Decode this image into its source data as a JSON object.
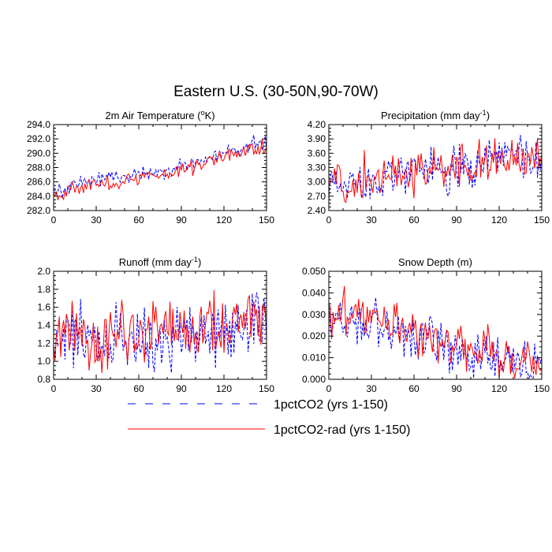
{
  "figure": {
    "title": "Eastern U.S. (30-50N,90-70W)"
  },
  "colors": {
    "co2": "#0000ff",
    "rad": "#ff0000",
    "axis": "#000000"
  },
  "legend": {
    "position": "bottom-center",
    "items": [
      {
        "label": "1pctCO2 (yrs 1-150)",
        "color": "#0000ff",
        "style": "dashed"
      },
      {
        "label": "1pctCO2-rad (yrs 1-150)",
        "color": "#ff0000",
        "style": "solid"
      }
    ]
  },
  "chart_data": [
    {
      "type": "line",
      "title": "2m Air Temperature (",
      "title_sup": "o",
      "title_post": "K)",
      "xlim": [
        0,
        150
      ],
      "ylim": [
        282.0,
        294.0
      ],
      "xticks": [
        0,
        30,
        60,
        90,
        120,
        150
      ],
      "xtick_labels": [
        "0",
        "30",
        "60",
        "90",
        "120",
        "150"
      ],
      "yticks": [
        282.0,
        284.0,
        286.0,
        288.0,
        290.0,
        292.0,
        294.0
      ],
      "ytick_labels": [
        "282.0",
        "284.0",
        "286.0",
        "288.0",
        "290.0",
        "292.0",
        "294.0"
      ],
      "series": [
        {
          "name": "1pctCO2 (yrs 1-150)",
          "color": "#0000ff",
          "dash": true,
          "x_start": 0,
          "x_step": 10,
          "values": [
            284.7,
            285.0,
            286.1,
            286.3,
            286.7,
            286.9,
            286.9,
            287.6,
            287.7,
            288.0,
            288.6,
            289.3,
            290.0,
            290.5,
            291.3,
            291.4
          ]
        },
        {
          "name": "1pctCO2-rad (yrs 1-150)",
          "color": "#ff0000",
          "dash": false,
          "x_start": 0,
          "x_step": 10,
          "values": [
            284.3,
            284.8,
            285.4,
            285.6,
            285.8,
            286.2,
            286.4,
            286.9,
            287.2,
            287.8,
            288.2,
            289.0,
            289.7,
            290.2,
            290.5,
            290.9
          ]
        }
      ]
    },
    {
      "type": "line",
      "title": "Precipitation (mm day",
      "title_sup": "-1",
      "title_post": ")",
      "xlim": [
        0,
        150
      ],
      "ylim": [
        2.4,
        4.2
      ],
      "xticks": [
        0,
        30,
        60,
        90,
        120,
        150
      ],
      "xtick_labels": [
        "0",
        "30",
        "60",
        "90",
        "120",
        "150"
      ],
      "yticks": [
        2.4,
        2.7,
        3.0,
        3.3,
        3.6,
        3.9,
        4.2
      ],
      "ytick_labels": [
        "2.40",
        "2.70",
        "3.00",
        "3.30",
        "3.60",
        "3.90",
        "4.20"
      ],
      "series": [
        {
          "name": "1pctCO2 (yrs 1-150)",
          "color": "#0000ff",
          "dash": true,
          "x_start": 0,
          "x_step": 10,
          "values": [
            3.0,
            3.1,
            2.95,
            3.0,
            3.2,
            3.15,
            3.2,
            3.3,
            3.2,
            3.35,
            3.2,
            3.4,
            3.5,
            3.6,
            3.45,
            3.4
          ]
        },
        {
          "name": "1pctCO2-rad (yrs 1-150)",
          "color": "#ff0000",
          "dash": false,
          "x_start": 0,
          "x_step": 10,
          "values": [
            3.0,
            3.0,
            3.05,
            3.1,
            3.15,
            3.15,
            3.25,
            3.25,
            3.3,
            3.3,
            3.3,
            3.4,
            3.4,
            3.45,
            3.4,
            3.4
          ]
        }
      ]
    },
    {
      "type": "line",
      "title": "Runoff (mm day",
      "title_sup": "-1",
      "title_post": ")",
      "xlim": [
        0,
        150
      ],
      "ylim": [
        0.8,
        2.0
      ],
      "xticks": [
        0,
        30,
        60,
        90,
        120,
        150
      ],
      "xtick_labels": [
        "0",
        "30",
        "60",
        "90",
        "120",
        "150"
      ],
      "yticks": [
        0.8,
        1.0,
        1.2,
        1.4,
        1.6,
        1.8,
        2.0
      ],
      "ytick_labels": [
        "0.8",
        "1.0",
        "1.2",
        "1.4",
        "1.6",
        "1.8",
        "2.0"
      ],
      "series": [
        {
          "name": "1pctCO2 (yrs 1-150)",
          "color": "#0000ff",
          "dash": true,
          "x_start": 0,
          "x_step": 10,
          "values": [
            1.2,
            1.3,
            1.3,
            1.2,
            1.15,
            1.2,
            1.3,
            1.25,
            1.25,
            1.3,
            1.35,
            1.3,
            1.35,
            1.4,
            1.45,
            1.45
          ]
        },
        {
          "name": "1pctCO2-rad (yrs 1-150)",
          "color": "#ff0000",
          "dash": false,
          "x_start": 0,
          "x_step": 10,
          "values": [
            1.3,
            1.25,
            1.3,
            1.25,
            1.25,
            1.3,
            1.3,
            1.35,
            1.35,
            1.35,
            1.4,
            1.4,
            1.4,
            1.45,
            1.5,
            1.55
          ]
        }
      ]
    },
    {
      "type": "line",
      "title": "Snow Depth (m)",
      "title_sup": "",
      "title_post": "",
      "xlim": [
        0,
        150
      ],
      "ylim": [
        0.0,
        0.05
      ],
      "xticks": [
        0,
        30,
        60,
        90,
        120,
        150
      ],
      "xtick_labels": [
        "0",
        "30",
        "60",
        "90",
        "120",
        "150"
      ],
      "yticks": [
        0.0,
        0.01,
        0.02,
        0.03,
        0.04,
        0.05
      ],
      "ytick_labels": [
        "0.000",
        "0.010",
        "0.020",
        "0.030",
        "0.040",
        "0.050"
      ],
      "series": [
        {
          "name": "1pctCO2 (yrs 1-150)",
          "color": "#0000ff",
          "dash": true,
          "x_start": 0,
          "x_step": 10,
          "values": [
            0.028,
            0.027,
            0.024,
            0.024,
            0.021,
            0.022,
            0.018,
            0.018,
            0.015,
            0.015,
            0.013,
            0.012,
            0.011,
            0.009,
            0.008,
            0.006
          ]
        },
        {
          "name": "1pctCO2-rad (yrs 1-150)",
          "color": "#ff0000",
          "dash": false,
          "x_start": 0,
          "x_step": 10,
          "values": [
            0.03,
            0.031,
            0.03,
            0.026,
            0.026,
            0.026,
            0.023,
            0.021,
            0.019,
            0.018,
            0.015,
            0.013,
            0.012,
            0.01,
            0.008,
            0.007
          ]
        }
      ]
    }
  ]
}
